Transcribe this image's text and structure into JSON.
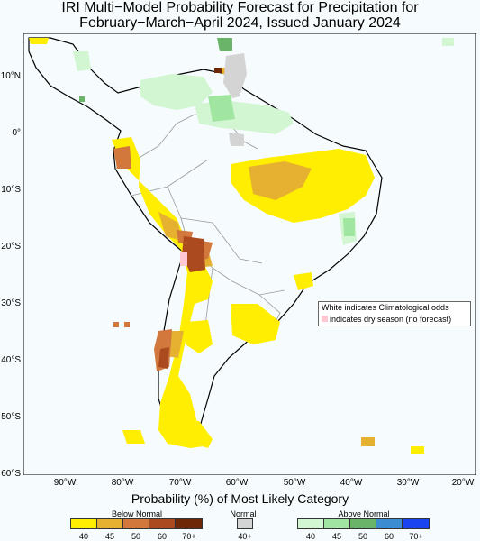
{
  "title_line1": "IRI Multi−Model Probability Forecast for Precipitation for",
  "title_line2": "February−March−April 2024, Issued January 2024",
  "lat_labels": [
    "10°N",
    "0°",
    "10°S",
    "20°S",
    "30°S",
    "40°S",
    "50°S",
    "60°S"
  ],
  "lon_labels": [
    "90°W",
    "80°W",
    "70°W",
    "60°W",
    "50°W",
    "40°W",
    "30°W",
    "20°W"
  ],
  "legend": {
    "title": "Probability (%) of Most Likely Category",
    "below_label": "Below Normal",
    "normal_label": "Normal",
    "above_label": "Above Normal",
    "below_ticks": [
      "40",
      "45",
      "50",
      "60",
      "70+"
    ],
    "normal_ticks": [
      "40+"
    ],
    "above_ticks": [
      "40",
      "45",
      "50",
      "60",
      "70+"
    ],
    "below_colors": [
      "#ffee00",
      "#e6b030",
      "#d2783c",
      "#aa4a1e",
      "#6e2808"
    ],
    "normal_colors": [
      "#d4d4d4"
    ],
    "above_colors": [
      "#d2f5d2",
      "#a0e6a0",
      "#6ab46a",
      "#3c8cd2",
      "#1a44f0"
    ]
  },
  "note": {
    "line1": "White indicates Climatological odds",
    "line2": "indicates dry season (no forecast)",
    "dry_color": "#ffc8d2"
  }
}
